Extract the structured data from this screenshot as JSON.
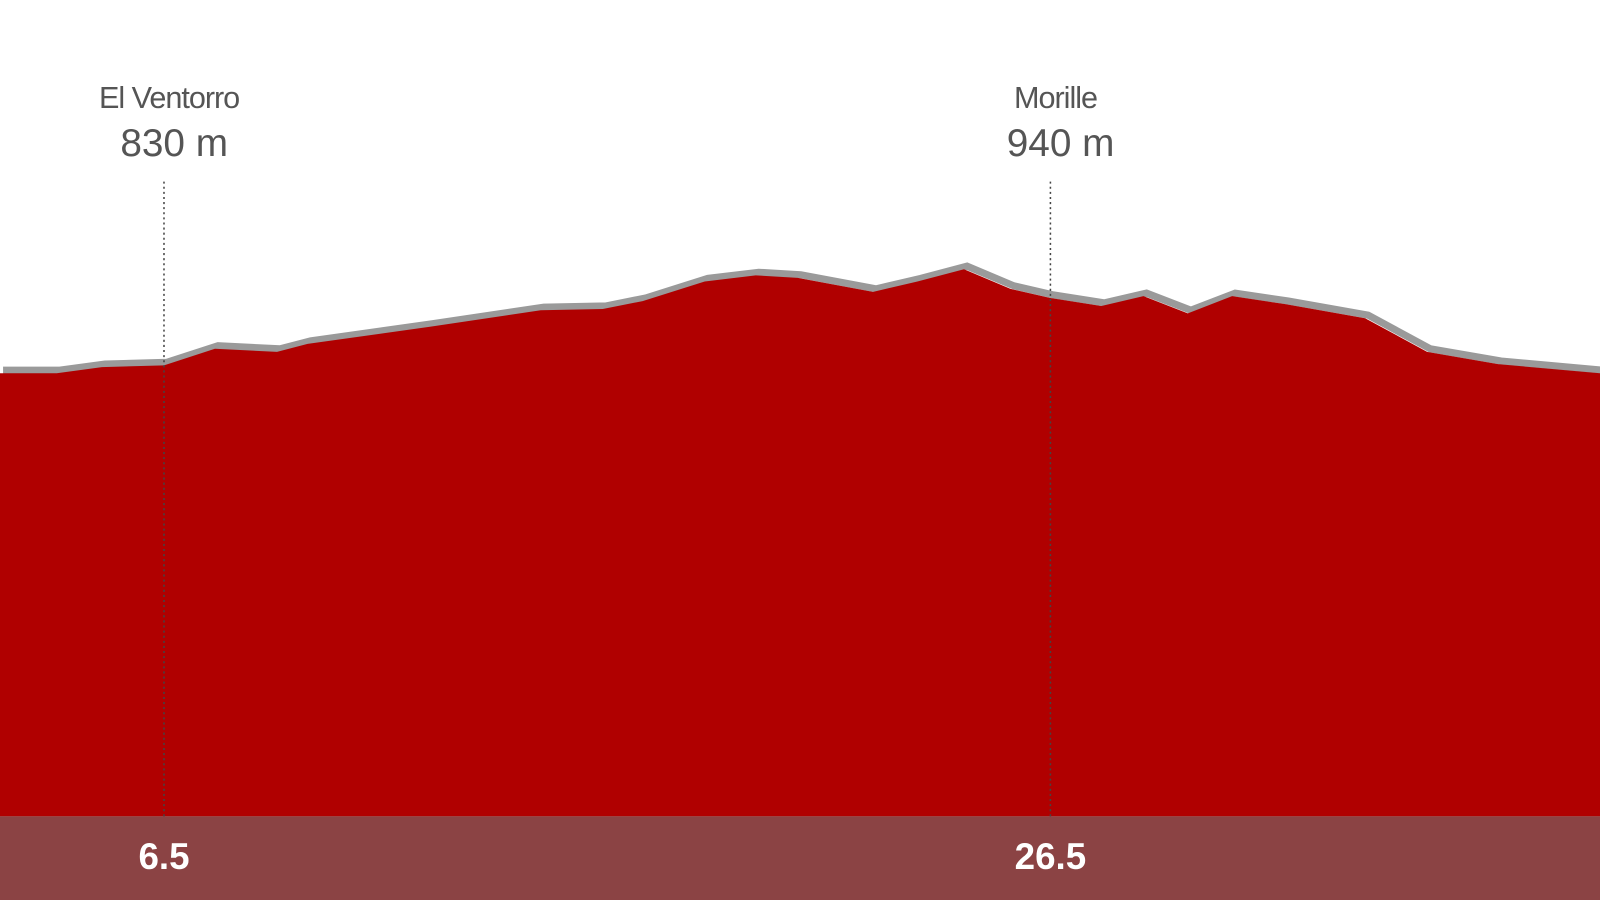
{
  "chart_data": {
    "type": "area",
    "x": [
      2.8,
      4.08,
      5.1,
      6.5,
      7.65,
      9.05,
      9.74,
      12.5,
      15.0,
      16.4,
      17.3,
      18.7,
      19.85,
      20.8,
      22.5,
      23.5,
      24.55,
      25.6,
      26.5,
      27.65,
      28.6,
      29.6,
      30.6,
      31.8,
      33.6,
      35.0,
      36.6,
      38.9
    ],
    "values": [
      817,
      817,
      827,
      830,
      857,
      852,
      865,
      893,
      920,
      922,
      935,
      967,
      977,
      973,
      950,
      967,
      987,
      955,
      940,
      927,
      943,
      915,
      943,
      930,
      907,
      852,
      832,
      817
    ],
    "color": "#b00000",
    "line_color": "#9a9a9a",
    "axis_color": "#8b4344",
    "xlim": [
      2.8,
      38.9
    ],
    "ylim": [
      93,
      1427
    ],
    "xticks": [
      6.5,
      26.5
    ],
    "annotations": [
      {
        "name": "El Ventorro",
        "x": 6.5,
        "elevation": {
          "value": 830,
          "label": "830 m"
        }
      },
      {
        "name": "Morille",
        "x": 26.5,
        "elevation": {
          "value": 940,
          "label": "940 m"
        }
      }
    ]
  }
}
